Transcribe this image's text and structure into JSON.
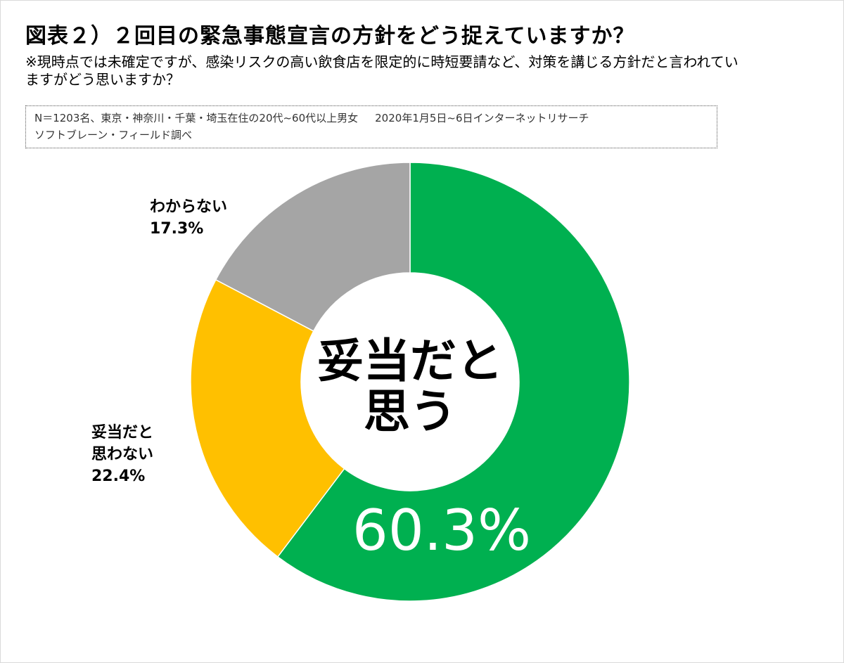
{
  "title": "図表２）２回目の緊急事態宣言の方針をどう捉えていますか？",
  "subtitle": "※現時点では未確定ですが、感染リスクの高い飲食店を限定的に時短要請など、対策を講じる方針だと言われていますがどう思いますか？",
  "source": {
    "line1_sample": "N＝1203名、東京・神奈川・千葉・埼玉在住の20代~60代以上男女",
    "line1_method": "2020年1月5日~6日インターネットリサーチ",
    "line2": "ソフトブレーン・フィールド調べ"
  },
  "chart_data": {
    "type": "pie",
    "variant": "donut",
    "center_label": [
      "妥当だと",
      "思う"
    ],
    "slices": [
      {
        "label": "妥当だと思う",
        "value": 60.3,
        "display": "60.3%",
        "color": "#00b050"
      },
      {
        "label": "妥当だと思わない",
        "label_lines": [
          "妥当だと",
          "思わない"
        ],
        "value": 22.4,
        "display": "22.4%",
        "color": "#ffc000"
      },
      {
        "label": "わからない",
        "label_lines": [
          "わからない"
        ],
        "value": 17.3,
        "display": "17.3%",
        "color": "#a5a5a5"
      }
    ]
  }
}
